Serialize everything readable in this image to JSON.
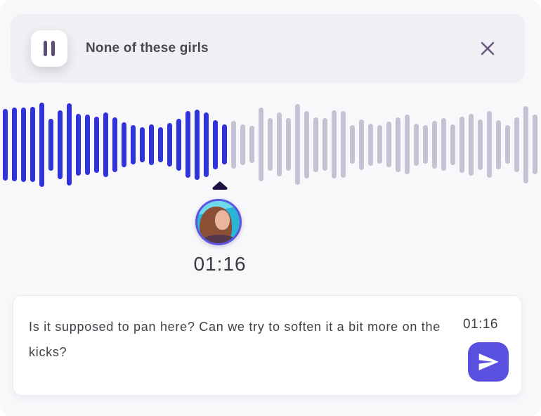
{
  "header": {
    "title": "None of these girls",
    "pause_icon": "pause-icon",
    "close_icon": "close-icon"
  },
  "waveform": {
    "type": "audio-waveform",
    "bar_count": 59,
    "played_count": 25,
    "played_color": "#3032dc",
    "remaining_color": "#c7c1d4",
    "heights": [
      102,
      105,
      106,
      107,
      120,
      74,
      98,
      117,
      88,
      86,
      80,
      92,
      78,
      64,
      56,
      50,
      58,
      50,
      62,
      74,
      95,
      100,
      92,
      70,
      57,
      68,
      58,
      53,
      105,
      75,
      91,
      75,
      115,
      96,
      78,
      75,
      97,
      95,
      55,
      72,
      60,
      55,
      65,
      78,
      85,
      60,
      55,
      68,
      75,
      58,
      80,
      88,
      72,
      95,
      70,
      55,
      78,
      110,
      85
    ]
  },
  "playhead": {
    "marker_icon": "playhead-triangle-icon",
    "marker_color": "#1d1042",
    "time": "01:16",
    "avatar_icon": "commenter-avatar",
    "avatar_ring_color": "#5c55e0"
  },
  "comment": {
    "text": "Is it supposed to pan here? Can we try to soften it a bit more on the kicks?",
    "time": "01:16",
    "send_icon": "send-icon",
    "send_color": "#5a50df"
  }
}
